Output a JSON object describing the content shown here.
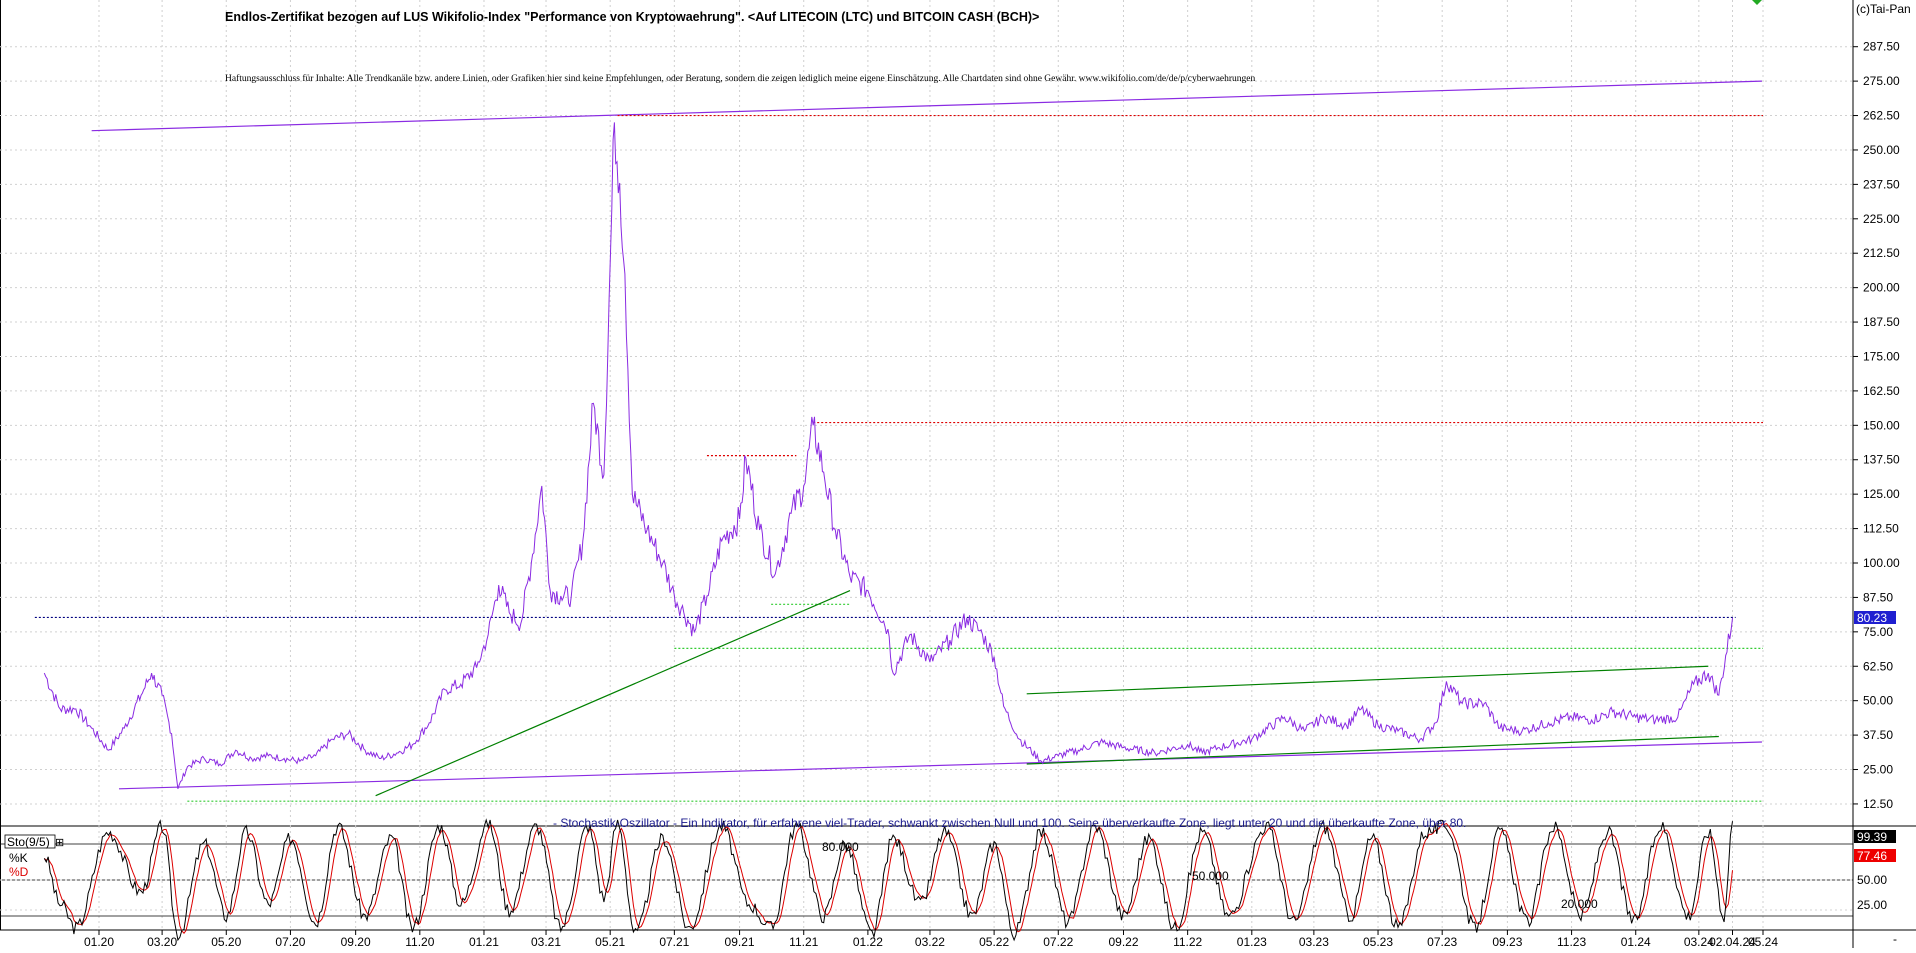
{
  "header": {
    "title": "Endlos-Zertifikat bezogen auf LUS Wikifolio-Index \"Performance von Kryptowaehrung\". <Auf LITECOIN (LTC) und BITCOIN CASH (BCH)>",
    "disclaimer": "Haftungsausschluss für Inhalte: Alle Trendkanäle bzw. andere Linien, oder Grafiken hier sind keine Empfehlungen, oder Beratung, sondern die zeigen lediglich meine eigene Einschätzung. Alle Chartdaten sind ohne Gewähr.  www.wikifolio.com/de/de/p/cyberwaehrungen",
    "copyright": "(c)Tai-Pan"
  },
  "oscillator": {
    "title": "- Stochastik-Oszillator - Ein Indikator, für erfahrene viel-Trader, schwankt zwischen Null und 100. Seine überverkaufte Zone, liegt unter 20 und die überkaufte Zone, über 80.",
    "label": "Sto(9/5)",
    "k_label": "%K",
    "d_label": "%D",
    "k_value": "99.39",
    "d_value": "77.46",
    "levels": [
      "80.000",
      "50.000",
      "20.000"
    ],
    "ticks": [
      "99.39",
      "77.46",
      "50.00",
      "25.00"
    ]
  },
  "colors": {
    "price": "#8a2be2",
    "trend_green": "#008000",
    "support_green": "#33cc33",
    "resistance_red": "#dd0000",
    "last_price_bg": "#1f1fd0",
    "k_line": "#000000",
    "d_line": "#dd0000",
    "d_label_bg": "#ee0000"
  },
  "chart_data": {
    "type": "line",
    "series": [],
    "y_ticks": [
      "287.50",
      "275.00",
      "262.50",
      "250.00",
      "237.50",
      "225.00",
      "212.50",
      "200.00",
      "187.50",
      "175.00",
      "162.50",
      "150.00",
      "137.50",
      "125.00",
      "112.50",
      "100.00",
      "87.50",
      "75.00",
      "62.50",
      "50.00",
      "37.50",
      "25.00",
      "12.50"
    ],
    "ylim": [
      5,
      300
    ],
    "last_value": "80.23",
    "x_ticks": [
      "01.20",
      "03.20",
      "05.20",
      "07.20",
      "09.20",
      "11.20",
      "01.21",
      "03.21",
      "05.21",
      "07.21",
      "09.21",
      "11.21",
      "01.22",
      "03.22",
      "05.22",
      "07.22",
      "09.22",
      "11.22",
      "01.23",
      "03.23",
      "05.23",
      "07.23",
      "09.23",
      "11.23",
      "01.24",
      "03.24",
      "05.24",
      "02.04.24"
    ],
    "price_points": [
      [
        "2019-11-10",
        60
      ],
      [
        "2019-11-25",
        47
      ],
      [
        "2019-12-10",
        47
      ],
      [
        "2019-12-25",
        40
      ],
      [
        "2020-01-10",
        32
      ],
      [
        "2020-01-25",
        40
      ],
      [
        "2020-02-10",
        52
      ],
      [
        "2020-02-20",
        60
      ],
      [
        "2020-03-01",
        52
      ],
      [
        "2020-03-10",
        38
      ],
      [
        "2020-03-16",
        18
      ],
      [
        "2020-03-25",
        26
      ],
      [
        "2020-04-10",
        29
      ],
      [
        "2020-04-25",
        27
      ],
      [
        "2020-05-10",
        32
      ],
      [
        "2020-05-25",
        29
      ],
      [
        "2020-06-10",
        30
      ],
      [
        "2020-06-25",
        29
      ],
      [
        "2020-07-10",
        28
      ],
      [
        "2020-07-25",
        30
      ],
      [
        "2020-08-10",
        36
      ],
      [
        "2020-08-25",
        38
      ],
      [
        "2020-09-10",
        32
      ],
      [
        "2020-09-25",
        29
      ],
      [
        "2020-10-10",
        31
      ],
      [
        "2020-10-25",
        34
      ],
      [
        "2020-11-10",
        42
      ],
      [
        "2020-11-25",
        54
      ],
      [
        "2020-12-10",
        56
      ],
      [
        "2020-12-25",
        62
      ],
      [
        "2021-01-05",
        74
      ],
      [
        "2021-01-15",
        92
      ],
      [
        "2021-01-25",
        82
      ],
      [
        "2021-02-05",
        78
      ],
      [
        "2021-02-15",
        100
      ],
      [
        "2021-02-25",
        128
      ],
      [
        "2021-03-05",
        90
      ],
      [
        "2021-03-15",
        88
      ],
      [
        "2021-03-25",
        88
      ],
      [
        "2021-04-05",
        108
      ],
      [
        "2021-04-15",
        158
      ],
      [
        "2021-04-25",
        132
      ],
      [
        "2021-05-05",
        260
      ],
      [
        "2021-05-10",
        238
      ],
      [
        "2021-05-15",
        205
      ],
      [
        "2021-05-22",
        125
      ],
      [
        "2021-06-05",
        112
      ],
      [
        "2021-06-20",
        100
      ],
      [
        "2021-07-01",
        88
      ],
      [
        "2021-07-10",
        82
      ],
      [
        "2021-07-20",
        75
      ],
      [
        "2021-08-01",
        88
      ],
      [
        "2021-08-15",
        108
      ],
      [
        "2021-09-01",
        116
      ],
      [
        "2021-09-07",
        138
      ],
      [
        "2021-09-20",
        112
      ],
      [
        "2021-10-05",
        96
      ],
      [
        "2021-10-20",
        118
      ],
      [
        "2021-11-01",
        128
      ],
      [
        "2021-11-10",
        150
      ],
      [
        "2021-11-20",
        133
      ],
      [
        "2021-12-01",
        112
      ],
      [
        "2021-12-15",
        95
      ],
      [
        "2022-01-01",
        90
      ],
      [
        "2022-01-20",
        76
      ],
      [
        "2022-01-25",
        60
      ],
      [
        "2022-02-10",
        74
      ],
      [
        "2022-03-01",
        64
      ],
      [
        "2022-03-20",
        72
      ],
      [
        "2022-04-05",
        80
      ],
      [
        "2022-04-20",
        74
      ],
      [
        "2022-05-01",
        66
      ],
      [
        "2022-05-10",
        48
      ],
      [
        "2022-05-25",
        36
      ],
      [
        "2022-06-15",
        28
      ],
      [
        "2022-07-01",
        30
      ],
      [
        "2022-07-20",
        32
      ],
      [
        "2022-08-10",
        35
      ],
      [
        "2022-09-01",
        33
      ],
      [
        "2022-10-01",
        31
      ],
      [
        "2022-11-01",
        34
      ],
      [
        "2022-11-15",
        31
      ],
      [
        "2022-12-01",
        33
      ],
      [
        "2023-01-01",
        36
      ],
      [
        "2023-02-01",
        44
      ],
      [
        "2023-02-20",
        39
      ],
      [
        "2023-03-10",
        44
      ],
      [
        "2023-04-01",
        41
      ],
      [
        "2023-04-15",
        47
      ],
      [
        "2023-05-01",
        41
      ],
      [
        "2023-05-20",
        39
      ],
      [
        "2023-06-10",
        36
      ],
      [
        "2023-06-25",
        42
      ],
      [
        "2023-07-05",
        57
      ],
      [
        "2023-07-20",
        49
      ],
      [
        "2023-08-10",
        49
      ],
      [
        "2023-08-25",
        40
      ],
      [
        "2023-09-15",
        39
      ],
      [
        "2023-10-10",
        42
      ],
      [
        "2023-11-01",
        44
      ],
      [
        "2023-11-20",
        43
      ],
      [
        "2023-12-10",
        46
      ],
      [
        "2024-01-01",
        44
      ],
      [
        "2024-01-20",
        43
      ],
      [
        "2024-02-10",
        44
      ],
      [
        "2024-02-25",
        56
      ],
      [
        "2024-03-10",
        60
      ],
      [
        "2024-03-20",
        52
      ],
      [
        "2024-04-02",
        80
      ]
    ],
    "stochastic_k_points": [
      [
        "2019-11-10",
        70
      ],
      [
        "2019-11-25",
        30
      ],
      [
        "2019-12-10",
        10
      ],
      [
        "2020-01-10",
        90
      ],
      [
        "2020-02-10",
        40
      ],
      [
        "2020-03-01",
        95
      ],
      [
        "2020-03-16",
        5
      ],
      [
        "2020-04-10",
        80
      ],
      [
        "2020-05-01",
        20
      ],
      [
        "2020-05-20",
        90
      ],
      [
        "2020-06-10",
        30
      ],
      [
        "2020-07-01",
        85
      ],
      [
        "2020-07-25",
        15
      ],
      [
        "2020-08-15",
        95
      ],
      [
        "2020-09-10",
        20
      ],
      [
        "2020-10-05",
        85
      ],
      [
        "2020-10-25",
        10
      ],
      [
        "2020-11-20",
        95
      ],
      [
        "2020-12-10",
        30
      ],
      [
        "2021-01-05",
        98
      ],
      [
        "2021-01-25",
        25
      ],
      [
        "2021-02-20",
        95
      ],
      [
        "2021-03-15",
        10
      ],
      [
        "2021-04-10",
        95
      ],
      [
        "2021-04-25",
        35
      ],
      [
        "2021-05-08",
        98
      ],
      [
        "2021-05-25",
        5
      ],
      [
        "2021-06-20",
        85
      ],
      [
        "2021-07-15",
        10
      ],
      [
        "2021-08-15",
        95
      ],
      [
        "2021-09-10",
        30
      ],
      [
        "2021-10-01",
        10
      ],
      [
        "2021-10-25",
        95
      ],
      [
        "2021-11-20",
        20
      ],
      [
        "2021-12-10",
        80
      ],
      [
        "2022-01-05",
        5
      ],
      [
        "2022-01-25",
        85
      ],
      [
        "2022-02-20",
        30
      ],
      [
        "2022-03-15",
        90
      ],
      [
        "2022-04-10",
        20
      ],
      [
        "2022-05-01",
        80
      ],
      [
        "2022-05-20",
        5
      ],
      [
        "2022-06-15",
        90
      ],
      [
        "2022-07-10",
        15
      ],
      [
        "2022-08-05",
        95
      ],
      [
        "2022-09-01",
        20
      ],
      [
        "2022-09-25",
        85
      ],
      [
        "2022-10-20",
        10
      ],
      [
        "2022-11-15",
        90
      ],
      [
        "2022-12-10",
        20
      ],
      [
        "2023-01-15",
        95
      ],
      [
        "2023-02-10",
        15
      ],
      [
        "2023-03-10",
        95
      ],
      [
        "2023-04-05",
        20
      ],
      [
        "2023-04-25",
        85
      ],
      [
        "2023-05-20",
        10
      ],
      [
        "2023-06-15",
        90
      ],
      [
        "2023-07-05",
        95
      ],
      [
        "2023-08-01",
        10
      ],
      [
        "2023-08-25",
        90
      ],
      [
        "2023-09-20",
        15
      ],
      [
        "2023-10-15",
        95
      ],
      [
        "2023-11-10",
        20
      ],
      [
        "2023-12-05",
        90
      ],
      [
        "2023-12-30",
        15
      ],
      [
        "2024-01-25",
        95
      ],
      [
        "2024-02-20",
        20
      ],
      [
        "2024-03-10",
        90
      ],
      [
        "2024-03-25",
        20
      ],
      [
        "2024-04-02",
        99
      ]
    ]
  }
}
